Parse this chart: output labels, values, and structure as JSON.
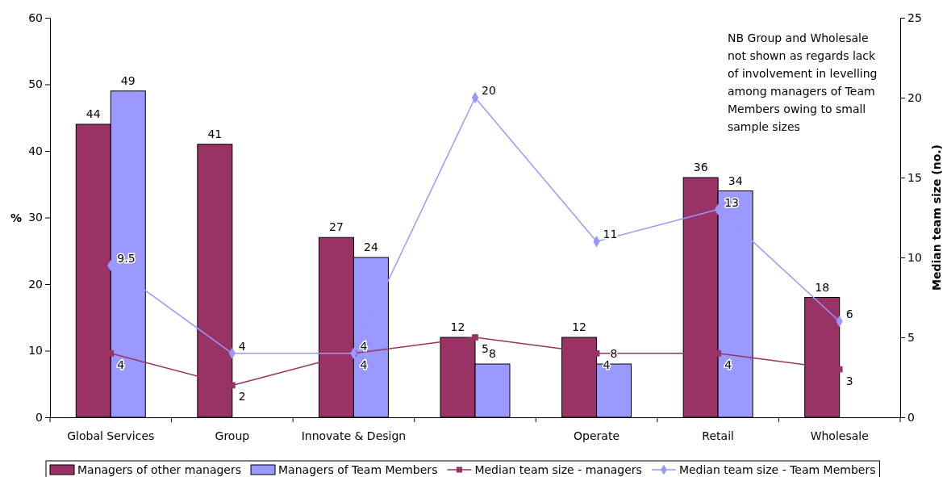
{
  "chart_data": {
    "type": "bar",
    "categories": [
      "Global Services",
      "Group",
      "Innovate & Design",
      null,
      "Operate",
      "Retail",
      "Wholesale"
    ],
    "series": [
      {
        "name": "Managers of other managers",
        "color": "#993366",
        "values": [
          44,
          41,
          27,
          12,
          12,
          36,
          18
        ]
      },
      {
        "name": "Managers of Team Members",
        "color": "#9999ff",
        "values": [
          49,
          null,
          24,
          8,
          8,
          34,
          null
        ]
      },
      {
        "name": "Median team size - managers",
        "type": "line",
        "axis": "y2",
        "marker": "square",
        "color": "#993366",
        "values": [
          4,
          2,
          4,
          5,
          4,
          4,
          3
        ]
      },
      {
        "name": "Median team size - Team Members",
        "type": "line",
        "axis": "y2",
        "marker": "diamond",
        "color": "#9999ff",
        "values": [
          9.5,
          4,
          4,
          20,
          11,
          13,
          6
        ]
      }
    ],
    "ylabel": "%",
    "y2label": "Median team size (no.)",
    "ylim": [
      0,
      60
    ],
    "yticks": [
      0,
      10,
      20,
      30,
      40,
      50,
      60
    ],
    "y2lim": [
      0,
      25
    ],
    "y2ticks": [
      0,
      5,
      10,
      15,
      20,
      25
    ],
    "data_labels": true,
    "legend": "bottom",
    "grid": false,
    "annotations": [
      "NB Group and Wholesale not shown as regards lack of involvement in levelling among managers of Team Members owing to small sample sizes"
    ]
  }
}
